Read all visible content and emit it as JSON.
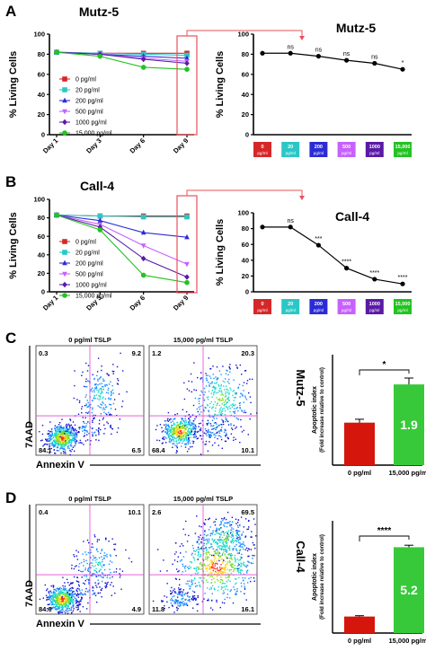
{
  "panels": {
    "A": {
      "letter": "A",
      "title": "Mutz-5",
      "title_right": "Mutz-5"
    },
    "B": {
      "letter": "B",
      "title": "Call-4",
      "title_right": "Call-4"
    },
    "C": {
      "letter": "C",
      "side_label": "Mutz-5"
    },
    "D": {
      "letter": "D",
      "side_label": "Call-4"
    }
  },
  "colors": {
    "0": "#d62728",
    "20": "#2bc7c7",
    "200": "#2b2bd6",
    "500": "#c760ff",
    "1000": "#5a1aa6",
    "15000": "#22c322",
    "red_bar": "#d4160d",
    "green_bar": "#38c93a",
    "highlight": "#e8505b"
  },
  "chart_data": [
    {
      "id": "A-left",
      "type": "line",
      "title": "Mutz-5",
      "xlabel": "",
      "ylabel": "% Living Cells",
      "categories": [
        "Day 1",
        "Day 3",
        "Day 6",
        "Day 9"
      ],
      "ylim": [
        0,
        100
      ],
      "yticks": [
        0,
        20,
        40,
        60,
        80,
        100
      ],
      "legend_position": "bottom-left",
      "series": [
        {
          "name": "0 pg/ml",
          "color": "#d62728",
          "marker": "square",
          "values": [
            82,
            81,
            81,
            81
          ]
        },
        {
          "name": "20 pg/ml",
          "color": "#2bc7c7",
          "marker": "square",
          "values": [
            82,
            81,
            80,
            79
          ]
        },
        {
          "name": "200 pg/ml",
          "color": "#2b2bd6",
          "marker": "triangle",
          "values": [
            82,
            80,
            78,
            76
          ]
        },
        {
          "name": "500 pg/ml",
          "color": "#c760ff",
          "marker": "triangle-down",
          "values": [
            82,
            80,
            76,
            73
          ]
        },
        {
          "name": "1000 pg/ml",
          "color": "#5a1aa6",
          "marker": "diamond",
          "values": [
            82,
            80,
            75,
            71
          ]
        },
        {
          "name": "15,000 pg/ml",
          "color": "#22c322",
          "marker": "circle",
          "values": [
            82,
            78,
            67,
            65
          ]
        }
      ]
    },
    {
      "id": "A-right",
      "type": "line",
      "title": "Mutz-5",
      "xlabel": "",
      "ylabel": "% Living Cells",
      "categories": [
        "0 pg/ml",
        "20 pg/ml",
        "200 pg/ml",
        "500 pg/ml",
        "1000 pg/ml",
        "15,000 pg/ml"
      ],
      "category_labels": [
        [
          "0",
          "pg/ml"
        ],
        [
          "20",
          "pg/ml"
        ],
        [
          "200",
          "pg/ml"
        ],
        [
          "500",
          "pg/ml"
        ],
        [
          "1000",
          "pg/ml"
        ],
        [
          "15,000",
          "pg/ml"
        ]
      ],
      "ylim": [
        0,
        100
      ],
      "yticks": [
        0,
        20,
        40,
        60,
        80,
        100
      ],
      "values": [
        81,
        81,
        78,
        74,
        71,
        65
      ],
      "annotations": [
        "",
        "ns",
        "ns",
        "ns",
        "ns",
        "*"
      ]
    },
    {
      "id": "B-left",
      "type": "line",
      "title": "Call-4",
      "xlabel": "",
      "ylabel": "% Living Cells",
      "categories": [
        "Day 1",
        "Day 3",
        "Day 6",
        "Day 9"
      ],
      "ylim": [
        0,
        100
      ],
      "yticks": [
        0,
        20,
        40,
        60,
        80,
        100
      ],
      "legend_position": "bottom-left",
      "series": [
        {
          "name": "0 pg/ml",
          "color": "#d62728",
          "marker": "square",
          "values": [
            83,
            82,
            82,
            82
          ]
        },
        {
          "name": "20 pg/ml",
          "color": "#2bc7c7",
          "marker": "square",
          "values": [
            83,
            82,
            81,
            81
          ]
        },
        {
          "name": "200 pg/ml",
          "color": "#2b2bd6",
          "marker": "triangle",
          "values": [
            83,
            77,
            64,
            59
          ]
        },
        {
          "name": "500 pg/ml",
          "color": "#c760ff",
          "marker": "triangle-down",
          "values": [
            83,
            73,
            50,
            30
          ]
        },
        {
          "name": "1000 pg/ml",
          "color": "#5a1aa6",
          "marker": "diamond",
          "values": [
            83,
            70,
            36,
            16
          ]
        },
        {
          "name": "15,000 pg/ml",
          "color": "#22c322",
          "marker": "circle",
          "values": [
            83,
            67,
            18,
            10
          ]
        }
      ]
    },
    {
      "id": "B-right",
      "type": "line",
      "title": "Call-4",
      "xlabel": "",
      "ylabel": "% Living Cells",
      "categories": [
        "0 pg/ml",
        "20 pg/ml",
        "200 pg/ml",
        "500 pg/ml",
        "1000 pg/ml",
        "15,000 pg/ml"
      ],
      "category_labels": [
        [
          "0",
          "pg/ml"
        ],
        [
          "20",
          "pg/ml"
        ],
        [
          "200",
          "pg/ml"
        ],
        [
          "500",
          "pg/ml"
        ],
        [
          "1000",
          "pg/ml"
        ],
        [
          "15,000",
          "pg/ml"
        ]
      ],
      "ylim": [
        0,
        100
      ],
      "yticks": [
        0,
        20,
        40,
        60,
        80,
        100
      ],
      "values": [
        82,
        82,
        59,
        30,
        16,
        10
      ],
      "annotations": [
        "",
        "ns",
        "***",
        "****",
        "****",
        "****"
      ]
    },
    {
      "id": "C-flow",
      "type": "scatter",
      "xlabel": "Annexin V",
      "ylabel": "7AAD",
      "plots": [
        {
          "title": "0 pg/ml TSLP",
          "quadrants": {
            "ul": "0.3",
            "ur": "9.2",
            "ll": "84.1",
            "lr": "6.5"
          }
        },
        {
          "title": "15,000 pg/ml TSLP",
          "quadrants": {
            "ul": "1.2",
            "ur": "20.3",
            "ll": "68.4",
            "lr": "10.1"
          }
        }
      ]
    },
    {
      "id": "C-bar",
      "type": "bar",
      "ylabel": "Apoptotic index",
      "ylabel2": "(Fold increase relative to control)",
      "categories": [
        "0 pg/ml",
        "15,000 pg/ml"
      ],
      "values": [
        1.0,
        1.9
      ],
      "value_labels": [
        "",
        "1.9"
      ],
      "errors": [
        0.08,
        0.15
      ],
      "ylim": [
        0,
        2.6
      ],
      "significance": "*"
    },
    {
      "id": "D-flow",
      "type": "scatter",
      "xlabel": "Annexin V",
      "ylabel": "7AAD",
      "plots": [
        {
          "title": "0 pg/ml TSLP",
          "quadrants": {
            "ul": "0.4",
            "ur": "10.1",
            "ll": "84.6",
            "lr": "4.9"
          }
        },
        {
          "title": "15,000 pg/ml TSLP",
          "quadrants": {
            "ul": "2.6",
            "ur": "69.5",
            "ll": "11.8",
            "lr": "16.1"
          }
        }
      ]
    },
    {
      "id": "D-bar",
      "type": "bar",
      "ylabel": "Apoptotic index",
      "ylabel2": "(Fold increase relative to control)",
      "categories": [
        "0 pg/ml",
        "15,000 pg/ml"
      ],
      "values": [
        1.0,
        5.2
      ],
      "value_labels": [
        "",
        "5.2"
      ],
      "errors": [
        0.05,
        0.12
      ],
      "ylim": [
        0,
        6.8
      ],
      "significance": "****"
    }
  ]
}
